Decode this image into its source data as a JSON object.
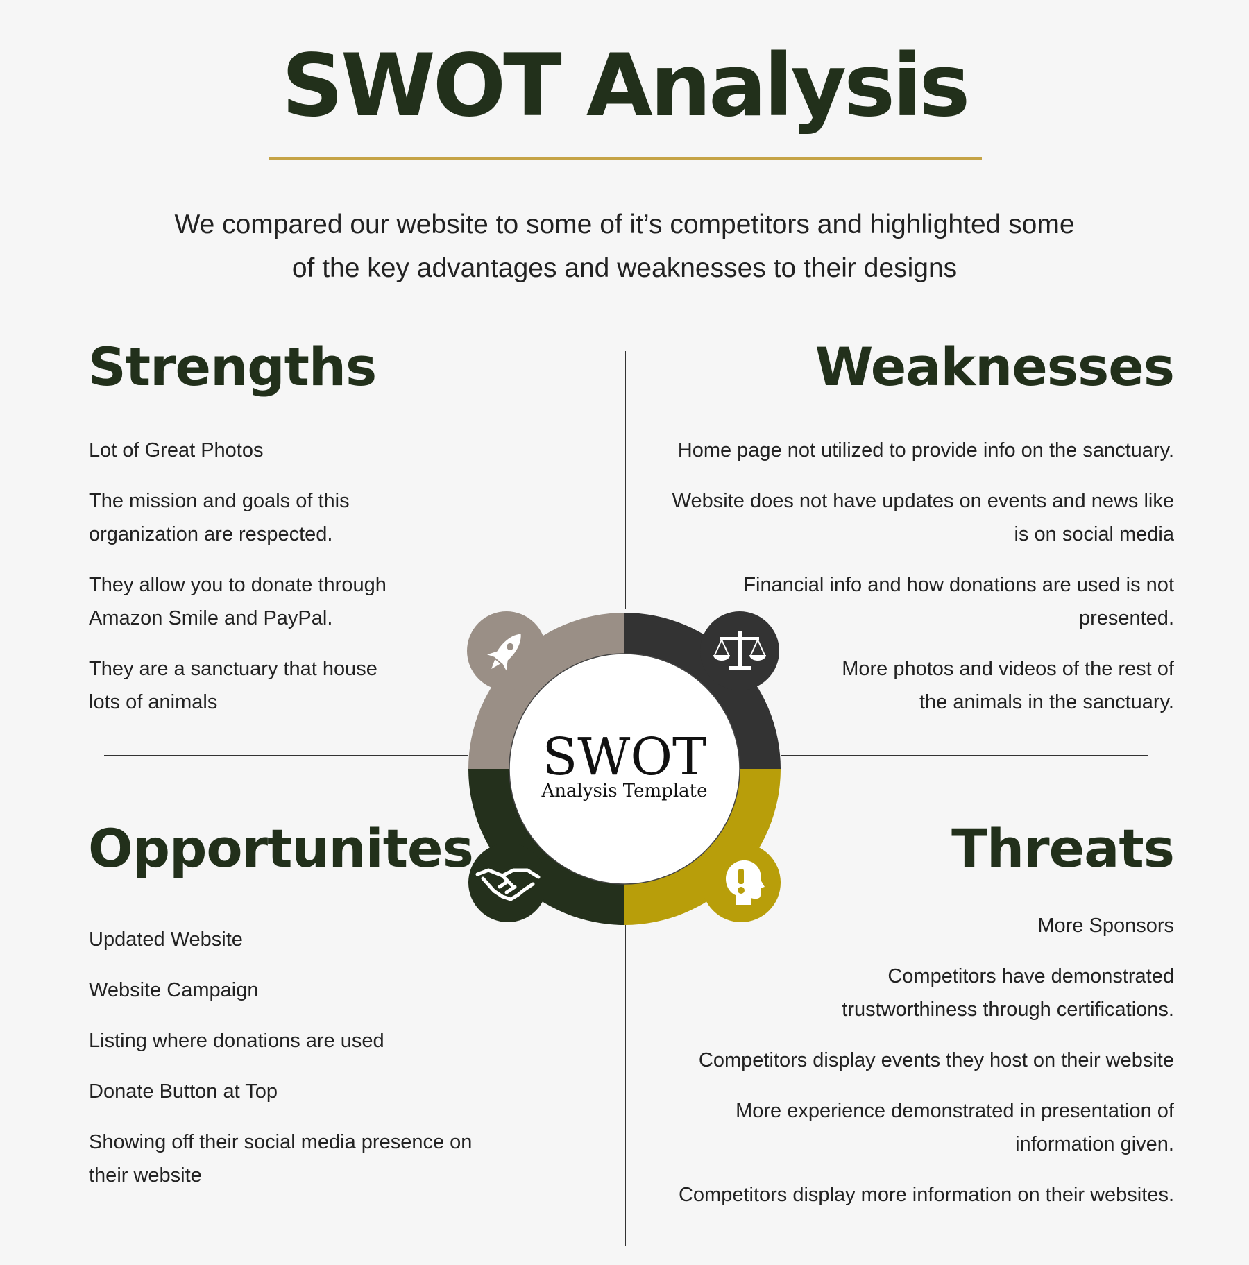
{
  "header": {
    "title": "SWOT Analysis",
    "subtitle_line1": "We compared our website to some of it’s competitors and highlighted some",
    "subtitle_line2": "of the key advantages and weaknesses to their designs"
  },
  "strengths": {
    "heading": "Strengths",
    "items": [
      [
        "Lot of Great Photos"
      ],
      [
        "The mission and goals of this",
        "organization are respected."
      ],
      [
        "They allow you to donate through",
        "Amazon Smile and PayPal."
      ],
      [
        "They are a sanctuary that house",
        "lots of animals"
      ]
    ]
  },
  "weaknesses": {
    "heading": "Weaknesses",
    "items": [
      [
        "Home page not utilized to provide info on the sanctuary."
      ],
      [
        "Website does not have updates on events and news like",
        "is on social media"
      ],
      [
        "Financial info and how donations are used is not",
        "presented."
      ],
      [
        "More photos and videos of the rest of",
        "the animals in the sanctuary."
      ]
    ]
  },
  "opportunities": {
    "heading": "Opportunites",
    "items": [
      [
        "Updated Website"
      ],
      [
        "Website Campaign"
      ],
      [
        "Listing where donations are used"
      ],
      [
        "Donate Button at Top"
      ],
      [
        "Showing off their social media presence on",
        "their website"
      ]
    ]
  },
  "threats": {
    "heading": "Threats",
    "items": [
      [
        "More Sponsors"
      ],
      [
        "Competitors have demonstrated",
        "trustworthiness through certifications."
      ],
      [
        "Competitors display events they host on their website"
      ],
      [
        "More experience demonstrated in presentation of",
        "information given."
      ],
      [
        "Competitors display more information on their websites."
      ]
    ]
  },
  "center": {
    "big": "SWOT",
    "small": "Analysis Template"
  },
  "colors": {
    "strengths": "#9a8f86",
    "weaknesses": "#333333",
    "opportunities": "#24301c",
    "threats": "#b89e0a",
    "accent_rule": "#c5a346",
    "heading": "#22301b"
  },
  "icons": {
    "strengths": "rocket-icon",
    "weaknesses": "scales-icon",
    "opportunities": "handshake-icon",
    "threats": "alert-head-icon"
  }
}
